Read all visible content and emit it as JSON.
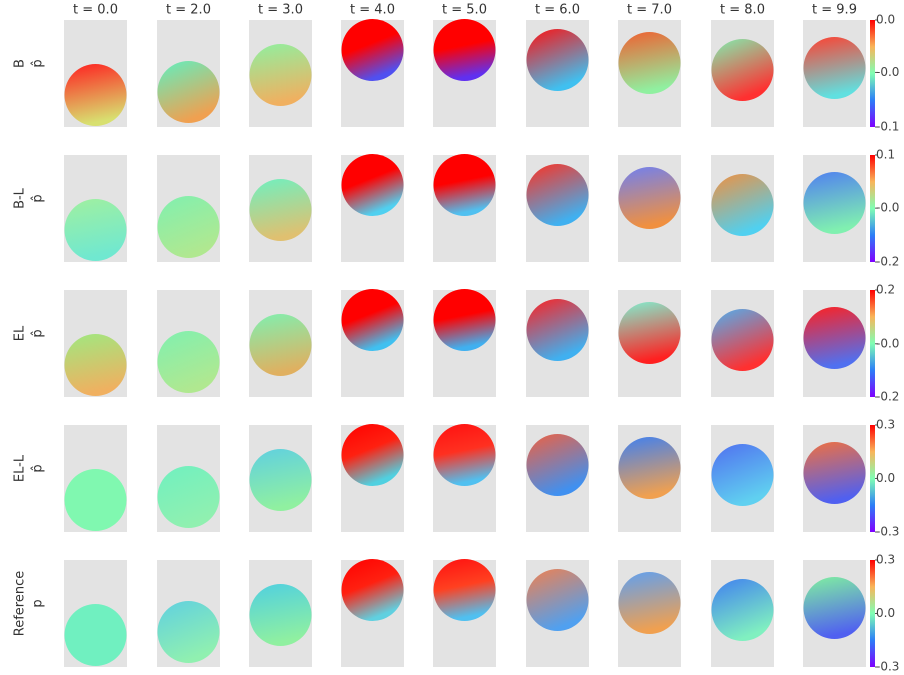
{
  "columns": [
    "t = 0.0",
    "t = 2.0",
    "t = 3.0",
    "t = 4.0",
    "t = 5.0",
    "t = 6.0",
    "t = 7.0",
    "t = 8.0",
    "t = 9.9"
  ],
  "rows": [
    {
      "label": "B",
      "symbol": "p̂",
      "colorbar": {
        "lim": [
          -0.1,
          0.0
        ],
        "ticks": [
          {
            "value": -0.1,
            "label": "-0.1"
          },
          {
            "value": -0.049,
            "label": "-0.0"
          },
          {
            "value": 0,
            "label": "0.0"
          }
        ]
      }
    },
    {
      "label": "B-L",
      "symbol": "p̂",
      "colorbar": {
        "lim": [
          -0.2,
          0.1
        ],
        "ticks": [
          {
            "value": -0.2,
            "label": "-0.2"
          },
          {
            "value": -0.049,
            "label": "-0.0"
          },
          {
            "value": 0.1,
            "label": "0.1"
          }
        ]
      }
    },
    {
      "label": "EL",
      "symbol": "p̂",
      "colorbar": {
        "lim": [
          -0.2,
          0.2
        ],
        "ticks": [
          {
            "value": -0.2,
            "label": "-0.2"
          },
          {
            "value": -0.001,
            "label": "-0.0"
          },
          {
            "value": 0.2,
            "label": "0.2"
          }
        ]
      }
    },
    {
      "label": "EL-L",
      "symbol": "p̂",
      "colorbar": {
        "lim": [
          -0.3,
          0.3
        ],
        "ticks": [
          {
            "value": -0.3,
            "label": "-0.3"
          },
          {
            "value": 0,
            "label": "0.0"
          },
          {
            "value": 0.3,
            "label": "0.3"
          }
        ]
      }
    },
    {
      "label": "Reference",
      "symbol": "p",
      "colorbar": {
        "lim": [
          -0.3,
          0.3
        ],
        "ticks": [
          {
            "value": -0.3,
            "label": "-0.3"
          },
          {
            "value": 0,
            "label": "0.0"
          },
          {
            "value": 0.3,
            "label": "0.3"
          }
        ]
      }
    }
  ]
}
